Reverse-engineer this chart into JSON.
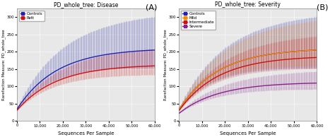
{
  "panel_A_title": "PD_whole_tree: Disease",
  "panel_B_title": "PD_whole_tree: Severity",
  "ylabel": "Rarefaction Measure: PD_whole_tree",
  "xlabel": "Sequences Per Sample",
  "x_max": 60000,
  "x_ticks": [
    0,
    10000,
    20000,
    30000,
    40000,
    50000,
    60000
  ],
  "x_tick_labels": [
    "0",
    "10,000",
    "20,000",
    "30,000",
    "40,000",
    "50,000",
    "60,000"
  ],
  "y_min": 0,
  "y_max": 325,
  "y_ticks": [
    0,
    50,
    100,
    150,
    200,
    250,
    300
  ],
  "panel_A_label": "(A)",
  "panel_B_label": "(B)",
  "series": {
    "controls": {
      "color": "#2222aa",
      "mean_at_60k": 210,
      "start": 33,
      "err_scale": 0.85
    },
    "rett": {
      "color": "#cc1111",
      "mean_at_60k": 163,
      "start": 30,
      "err_scale": 0.55
    },
    "mild": {
      "color": "#ff8800",
      "mean_at_60k": 210,
      "start": 33,
      "err_scale": 0.75
    },
    "intermediate": {
      "color": "#cc1111",
      "mean_at_60k": 188,
      "start": 30,
      "err_scale": 0.6
    },
    "severe": {
      "color": "#882288",
      "mean_at_60k": 112,
      "start": 22,
      "err_scale": 0.55
    }
  },
  "legend_A": [
    {
      "label": "Controls",
      "color": "#2222aa"
    },
    {
      "label": "Rett",
      "color": "#cc1111"
    }
  ],
  "legend_B": [
    {
      "label": "Controls",
      "color": "#2222aa"
    },
    {
      "label": "Mild",
      "color": "#ff8800"
    },
    {
      "label": "Intermediate",
      "color": "#cc1111"
    },
    {
      "label": "Severe",
      "color": "#882288"
    }
  ],
  "n_errorbars": 55,
  "bg_color": "#e8e8e8"
}
